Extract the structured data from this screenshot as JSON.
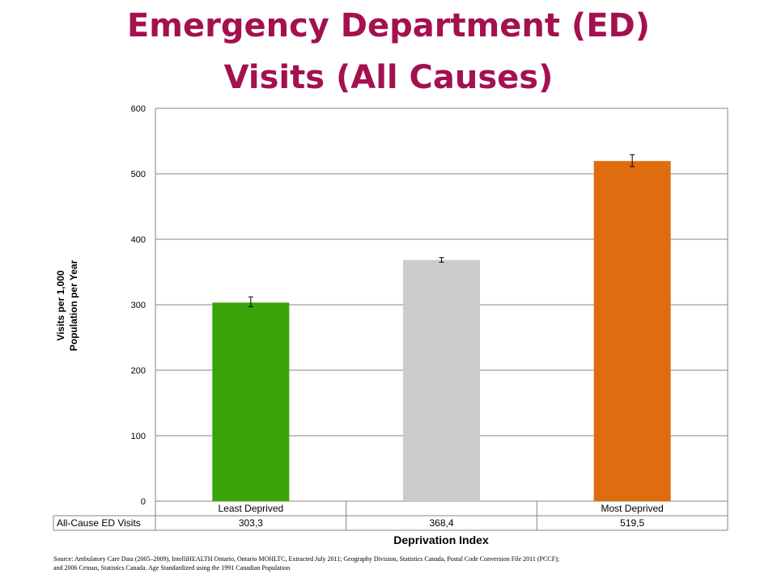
{
  "title_line1": "Emergency Department (ED)",
  "title_line2": "Visits (All Causes)",
  "source_line1": "Source: Ambulatory Care Data (2005–2009), IntelliHEALTH Ontario, Ontario MOHLTC, Extracted July 2011; Geography Division, Statistics Canada, Postal Code Conversion File 2011 (PCCF);",
  "source_line2": "and 2006 Census, Statistics Canada. Age Standardized using the 1991 Canadian Population",
  "chart_data": {
    "type": "bar",
    "title": "",
    "xlabel": "Deprivation Index",
    "ylabel_line1": "Visits per 1,000",
    "ylabel_line2": "Population per Year",
    "ylim": [
      0,
      600
    ],
    "yticks": [
      "0",
      "100",
      "200",
      "300",
      "400",
      "500",
      "600"
    ],
    "grid": true,
    "categories": [
      "Least Deprived",
      "",
      "Most Deprived"
    ],
    "series": [
      {
        "name": "All-Cause ED Visits",
        "values": [
          303.3,
          368.4,
          519.5
        ],
        "value_labels": [
          "303,3",
          "368,4",
          "519,5"
        ],
        "error_low": [
          297,
          365,
          511
        ],
        "error_high": [
          312,
          372,
          529
        ],
        "colors": [
          "#3aa30a",
          "#cccccc",
          "#e06c10"
        ]
      }
    ]
  }
}
